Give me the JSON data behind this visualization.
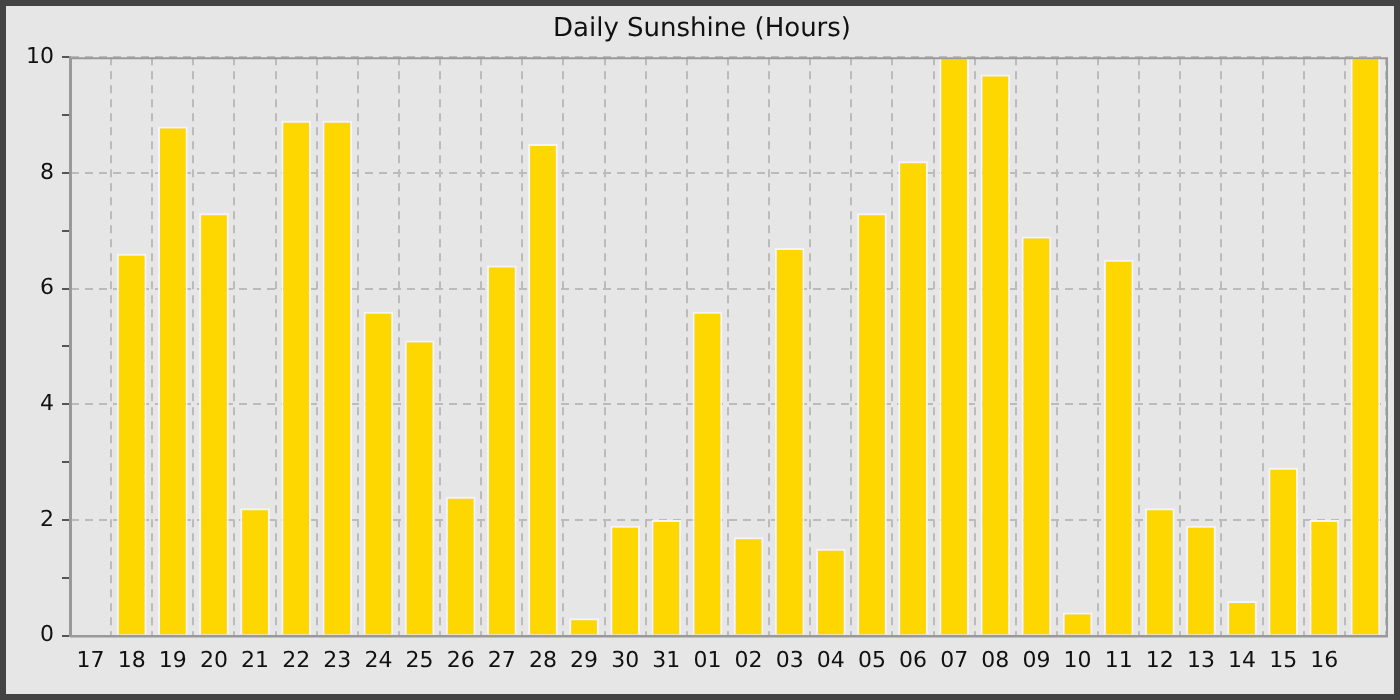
{
  "chart_data": {
    "type": "bar",
    "title": "Daily Sunshine (Hours)",
    "categories": [
      "17",
      "18",
      "19",
      "20",
      "21",
      "22",
      "23",
      "24",
      "25",
      "26",
      "27",
      "28",
      "29",
      "30",
      "31",
      "01",
      "02",
      "03",
      "04",
      "05",
      "06",
      "07",
      "08",
      "09",
      "10",
      "11",
      "12",
      "13",
      "14",
      "15",
      "16",
      null
    ],
    "values": [
      null,
      6.6,
      8.8,
      7.3,
      2.2,
      8.9,
      8.9,
      5.6,
      5.1,
      2.4,
      6.4,
      8.5,
      0.3,
      1.9,
      2.0,
      5.6,
      1.7,
      6.7,
      1.5,
      7.3,
      8.2,
      10,
      9.7,
      6.9,
      0.4,
      6.5,
      2.2,
      1.9,
      0.6,
      2.9,
      2.0,
      10
    ],
    "color": "#ffd700",
    "ylim": [
      0,
      10
    ],
    "yticks": [
      0,
      {
        "value": 1,
        "label": null
      },
      2,
      {
        "value": 3,
        "label": null
      },
      4,
      {
        "value": 5,
        "label": null
      },
      6,
      {
        "value": 7,
        "label": null
      },
      8,
      {
        "value": 9,
        "label": null
      },
      10
    ],
    "grid": true,
    "legend": false
  }
}
